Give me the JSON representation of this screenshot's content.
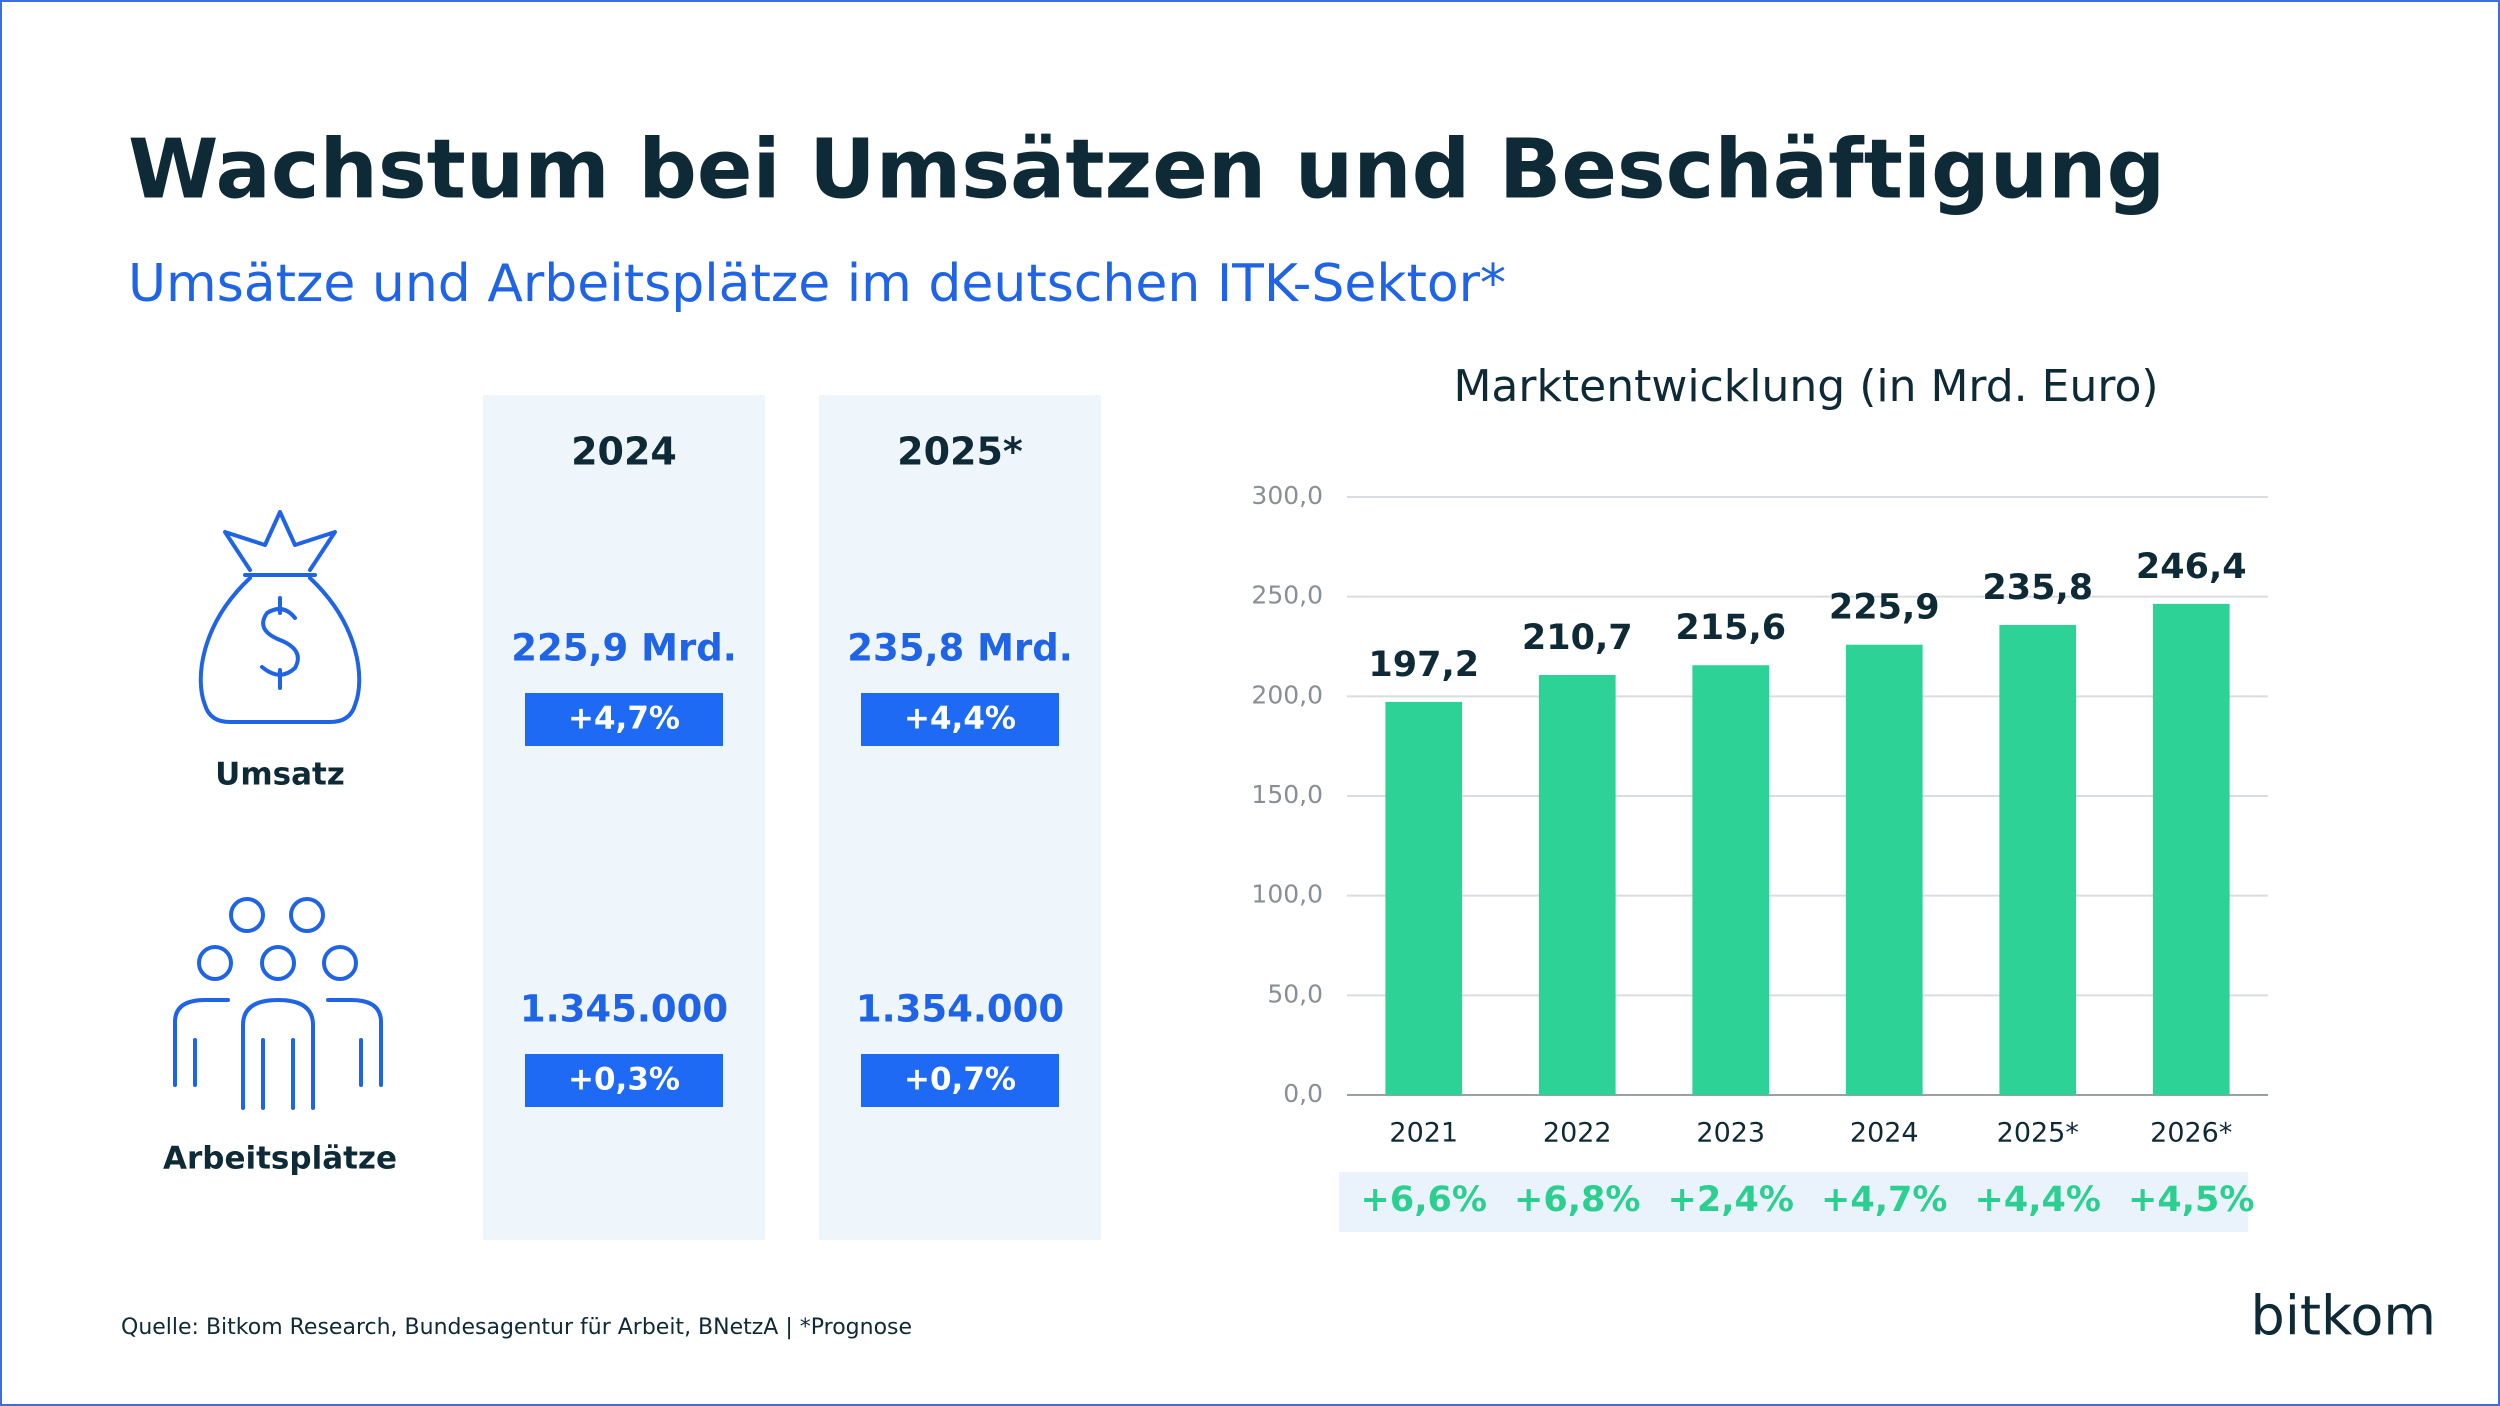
{
  "title": "Wachstum bei Umsätzen und Beschäftigung",
  "subtitle": "Umsätze und Arbeitsplätze im deutschen ITK-Sektor*",
  "overview": {
    "columns": [
      "2024",
      "2025*"
    ],
    "rows": [
      {
        "label": "Umsatz",
        "values": [
          "225,9 Mrd.",
          "235,8 Mrd."
        ],
        "changes": [
          "+4,7%",
          "+4,4%"
        ]
      },
      {
        "label": "Arbeitsplätze",
        "values": [
          "1.345.000",
          "1.354.000"
        ],
        "changes": [
          "+0,3%",
          "+0,7%"
        ]
      }
    ]
  },
  "chart_data": {
    "type": "bar",
    "title": "Marktentwicklung (in Mrd. Euro)",
    "categories": [
      "2021",
      "2022",
      "2023",
      "2024",
      "2025*",
      "2026*"
    ],
    "values": [
      197.2,
      210.7,
      215.6,
      225.9,
      235.8,
      246.4
    ],
    "value_labels": [
      "197,2",
      "210,7",
      "215,6",
      "225,9",
      "235,8",
      "246,4"
    ],
    "growth_labels": [
      "+6,6%",
      "+6,8%",
      "+2,4%",
      "+4,7%",
      "+4,4%",
      "+4,5%"
    ],
    "color": "#2dd396",
    "ylim": [
      0,
      300
    ],
    "yticks": [
      {
        "value": 0,
        "label": "0,0"
      },
      {
        "value": 50,
        "label": "50,0"
      },
      {
        "value": 100,
        "label": "100,0"
      },
      {
        "value": 150,
        "label": "150,0"
      },
      {
        "value": 200,
        "label": "200,0"
      },
      {
        "value": 250,
        "label": "250,0"
      },
      {
        "value": 300,
        "label": "300,0"
      }
    ],
    "grid": true
  },
  "source": "Quelle: Bitkom Research, Bundesagentur für Arbeit, BNetzA | *Prognose",
  "logo": "bitkom"
}
